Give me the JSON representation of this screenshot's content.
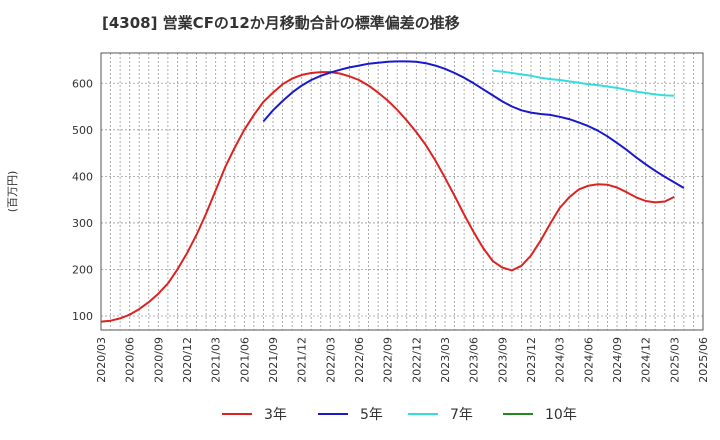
{
  "chart_data": {
    "type": "line",
    "title": "[4308]  営業CFの12か月移動合計の標準偏差の推移",
    "ylabel": "(百万円)",
    "xlabel": "",
    "ylim": [
      70,
      665
    ],
    "yticks": [
      100,
      200,
      300,
      400,
      500,
      600
    ],
    "x_ticks": [
      "2020/03",
      "2020/06",
      "2020/09",
      "2020/12",
      "2021/03",
      "2021/06",
      "2021/09",
      "2021/12",
      "2022/03",
      "2022/06",
      "2022/09",
      "2022/12",
      "2023/03",
      "2023/06",
      "2023/09",
      "2023/12",
      "2024/03",
      "2024/06",
      "2024/09",
      "2024/12",
      "2025/03",
      "2025/06"
    ],
    "grid": true,
    "legend_position": "bottom",
    "series": [
      {
        "name": "3年",
        "color": "#dd2222",
        "points": [
          [
            "2020/03",
            88
          ],
          [
            "2020/04",
            90
          ],
          [
            "2020/05",
            95
          ],
          [
            "2020/06",
            103
          ],
          [
            "2020/07",
            115
          ],
          [
            "2020/08",
            130
          ],
          [
            "2020/09",
            148
          ],
          [
            "2020/10",
            170
          ],
          [
            "2020/11",
            200
          ],
          [
            "2020/12",
            235
          ],
          [
            "2021/01",
            275
          ],
          [
            "2021/02",
            320
          ],
          [
            "2021/03",
            370
          ],
          [
            "2021/04",
            420
          ],
          [
            "2021/05",
            462
          ],
          [
            "2021/06",
            500
          ],
          [
            "2021/07",
            532
          ],
          [
            "2021/08",
            560
          ],
          [
            "2021/09",
            580
          ],
          [
            "2021/10",
            598
          ],
          [
            "2021/11",
            610
          ],
          [
            "2021/12",
            618
          ],
          [
            "2022/01",
            622
          ],
          [
            "2022/02",
            624
          ],
          [
            "2022/03",
            624
          ],
          [
            "2022/04",
            621
          ],
          [
            "2022/05",
            615
          ],
          [
            "2022/06",
            607
          ],
          [
            "2022/07",
            595
          ],
          [
            "2022/08",
            580
          ],
          [
            "2022/09",
            563
          ],
          [
            "2022/10",
            543
          ],
          [
            "2022/11",
            520
          ],
          [
            "2022/12",
            495
          ],
          [
            "2023/01",
            467
          ],
          [
            "2023/02",
            434
          ],
          [
            "2023/03",
            397
          ],
          [
            "2023/04",
            358
          ],
          [
            "2023/05",
            318
          ],
          [
            "2023/06",
            280
          ],
          [
            "2023/07",
            246
          ],
          [
            "2023/08",
            218
          ],
          [
            "2023/09",
            204
          ],
          [
            "2023/10",
            198
          ],
          [
            "2023/11",
            208
          ],
          [
            "2023/12",
            230
          ],
          [
            "2024/01",
            262
          ],
          [
            "2024/02",
            298
          ],
          [
            "2024/03",
            332
          ],
          [
            "2024/04",
            355
          ],
          [
            "2024/05",
            372
          ],
          [
            "2024/06",
            380
          ],
          [
            "2024/07",
            383
          ],
          [
            "2024/08",
            382
          ],
          [
            "2024/09",
            376
          ],
          [
            "2024/10",
            366
          ],
          [
            "2024/11",
            355
          ],
          [
            "2024/12",
            347
          ],
          [
            "2025/01",
            344
          ],
          [
            "2025/02",
            346
          ],
          [
            "2025/03",
            356
          ]
        ]
      },
      {
        "name": "5年",
        "color": "#1a1acc",
        "points": [
          [
            "2021/08",
            518
          ],
          [
            "2021/09",
            542
          ],
          [
            "2021/10",
            562
          ],
          [
            "2021/11",
            580
          ],
          [
            "2021/12",
            595
          ],
          [
            "2022/01",
            607
          ],
          [
            "2022/02",
            616
          ],
          [
            "2022/03",
            623
          ],
          [
            "2022/04",
            629
          ],
          [
            "2022/05",
            634
          ],
          [
            "2022/06",
            638
          ],
          [
            "2022/07",
            642
          ],
          [
            "2022/08",
            644
          ],
          [
            "2022/09",
            646
          ],
          [
            "2022/10",
            647
          ],
          [
            "2022/11",
            647
          ],
          [
            "2022/12",
            646
          ],
          [
            "2023/01",
            643
          ],
          [
            "2023/02",
            638
          ],
          [
            "2023/03",
            631
          ],
          [
            "2023/04",
            622
          ],
          [
            "2023/05",
            612
          ],
          [
            "2023/06",
            600
          ],
          [
            "2023/07",
            587
          ],
          [
            "2023/08",
            574
          ],
          [
            "2023/09",
            561
          ],
          [
            "2023/10",
            550
          ],
          [
            "2023/11",
            542
          ],
          [
            "2023/12",
            537
          ],
          [
            "2024/01",
            534
          ],
          [
            "2024/02",
            532
          ],
          [
            "2024/03",
            528
          ],
          [
            "2024/04",
            523
          ],
          [
            "2024/05",
            516
          ],
          [
            "2024/06",
            508
          ],
          [
            "2024/07",
            498
          ],
          [
            "2024/08",
            486
          ],
          [
            "2024/09",
            472
          ],
          [
            "2024/10",
            457
          ],
          [
            "2024/11",
            441
          ],
          [
            "2024/12",
            426
          ],
          [
            "2025/01",
            412
          ],
          [
            "2025/02",
            399
          ],
          [
            "2025/03",
            387
          ],
          [
            "2025/04",
            375
          ]
        ]
      },
      {
        "name": "7年",
        "color": "#33dddd",
        "points": [
          [
            "2023/08",
            627
          ],
          [
            "2023/09",
            625
          ],
          [
            "2023/10",
            622
          ],
          [
            "2023/11",
            619
          ],
          [
            "2023/12",
            616
          ],
          [
            "2024/01",
            612
          ],
          [
            "2024/02",
            609
          ],
          [
            "2024/03",
            607
          ],
          [
            "2024/04",
            604
          ],
          [
            "2024/05",
            601
          ],
          [
            "2024/06",
            598
          ],
          [
            "2024/07",
            596
          ],
          [
            "2024/08",
            593
          ],
          [
            "2024/09",
            590
          ],
          [
            "2024/10",
            586
          ],
          [
            "2024/11",
            582
          ],
          [
            "2024/12",
            579
          ],
          [
            "2025/01",
            576
          ],
          [
            "2025/02",
            574
          ],
          [
            "2025/03",
            573
          ]
        ]
      },
      {
        "name": "10年",
        "color": "#228822",
        "points": []
      }
    ]
  }
}
